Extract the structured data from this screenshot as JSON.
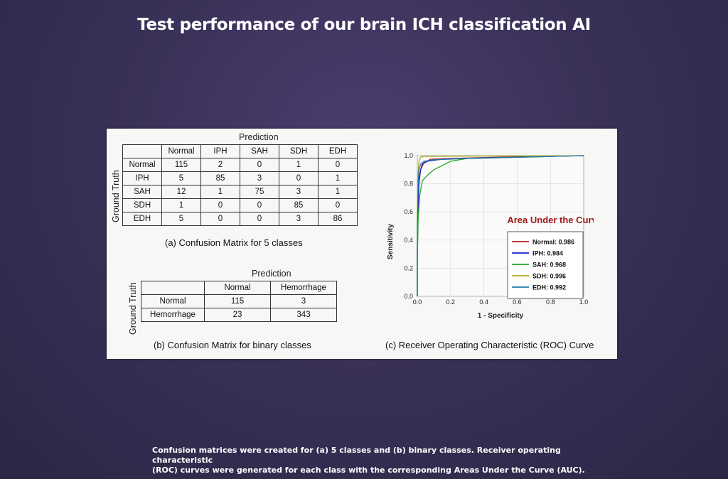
{
  "slide": {
    "title": "Test performance of our brain ICH classification AI",
    "footer_line1": "Confusion matrices were created for (a) 5 classes and (b) binary classes. Receiver operating characteristic",
    "footer_line2": "(ROC) curves were generated for each class with the corresponding Areas Under the Curve (AUC)."
  },
  "colors": {
    "normal": "#b22222",
    "iph": "#1a1acc",
    "sah": "#22aa22",
    "sdh": "#aaaa22",
    "edh": "#2277aa",
    "auc_title": "#a01818"
  },
  "chart_data": [
    {
      "type": "table",
      "caption": "(a) Confusion Matrix for 5 classes",
      "column_title": "Prediction",
      "row_title": "Ground Truth",
      "columns": [
        "Normal",
        "IPH",
        "SAH",
        "SDH",
        "EDH"
      ],
      "rows": [
        {
          "label": "Normal",
          "values": [
            115,
            2,
            0,
            1,
            0
          ]
        },
        {
          "label": "IPH",
          "values": [
            5,
            85,
            3,
            0,
            1
          ]
        },
        {
          "label": "SAH",
          "values": [
            12,
            1,
            75,
            3,
            1
          ]
        },
        {
          "label": "SDH",
          "values": [
            1,
            0,
            0,
            85,
            0
          ]
        },
        {
          "label": "EDH",
          "values": [
            5,
            0,
            0,
            3,
            86
          ]
        }
      ]
    },
    {
      "type": "table",
      "caption": "(b) Confusion Matrix for binary classes",
      "column_title": "Prediction",
      "row_title": "Ground Truth",
      "columns": [
        "Normal",
        "Hemorrhage"
      ],
      "rows": [
        {
          "label": "Normal",
          "values": [
            115,
            3
          ]
        },
        {
          "label": "Hemorrhage",
          "values": [
            23,
            343
          ]
        }
      ]
    },
    {
      "type": "line",
      "caption": "(c) Receiver Operating Characteristic (ROC) Curve",
      "xlabel": "1 - Specificity",
      "ylabel": "Sensitivity",
      "xlim": [
        0,
        1
      ],
      "ylim": [
        0,
        1
      ],
      "xticks": [
        "0.0",
        "0.2",
        "0.4",
        "0.6",
        "0.8",
        "1.0"
      ],
      "yticks": [
        "0.0",
        "0.2",
        "0.4",
        "0.6",
        "0.8",
        "1.0"
      ],
      "legend_title": "Area Under the Curve",
      "legend_placement": "bottom-right",
      "series": [
        {
          "name": "Normal: 0.986",
          "color": "#b22222",
          "points": [
            [
              0,
              0
            ],
            [
              0,
              0.3
            ],
            [
              0.005,
              0.6
            ],
            [
              0.01,
              0.8
            ],
            [
              0.02,
              0.9
            ],
            [
              0.04,
              0.95
            ],
            [
              0.08,
              0.975
            ],
            [
              0.2,
              0.98
            ],
            [
              0.5,
              0.99
            ],
            [
              1,
              1
            ]
          ]
        },
        {
          "name": "IPH: 0.984",
          "color": "#1a1acc",
          "points": [
            [
              0,
              0
            ],
            [
              0,
              0.35
            ],
            [
              0.005,
              0.65
            ],
            [
              0.01,
              0.82
            ],
            [
              0.02,
              0.9
            ],
            [
              0.03,
              0.94
            ],
            [
              0.06,
              0.96
            ],
            [
              0.15,
              0.975
            ],
            [
              0.4,
              0.985
            ],
            [
              1,
              1
            ]
          ]
        },
        {
          "name": "SAH: 0.968",
          "color": "#22aa22",
          "points": [
            [
              0,
              0
            ],
            [
              0,
              0.25
            ],
            [
              0.005,
              0.55
            ],
            [
              0.015,
              0.72
            ],
            [
              0.03,
              0.82
            ],
            [
              0.06,
              0.86
            ],
            [
              0.1,
              0.9
            ],
            [
              0.15,
              0.93
            ],
            [
              0.2,
              0.96
            ],
            [
              0.3,
              0.98
            ],
            [
              1,
              1
            ]
          ]
        },
        {
          "name": "SDH: 0.996",
          "color": "#aaaa22",
          "points": [
            [
              0,
              0
            ],
            [
              0,
              0.6
            ],
            [
              0.005,
              0.88
            ],
            [
              0.01,
              0.96
            ],
            [
              0.02,
              0.99
            ],
            [
              0.05,
              0.995
            ],
            [
              1,
              1
            ]
          ]
        },
        {
          "name": "EDH: 0.992",
          "color": "#2277aa",
          "points": [
            [
              0,
              0
            ],
            [
              0,
              0.5
            ],
            [
              0.005,
              0.8
            ],
            [
              0.01,
              0.9
            ],
            [
              0.02,
              0.94
            ],
            [
              0.04,
              0.96
            ],
            [
              0.1,
              0.97
            ],
            [
              0.3,
              0.98
            ],
            [
              1,
              1
            ]
          ]
        }
      ]
    }
  ]
}
